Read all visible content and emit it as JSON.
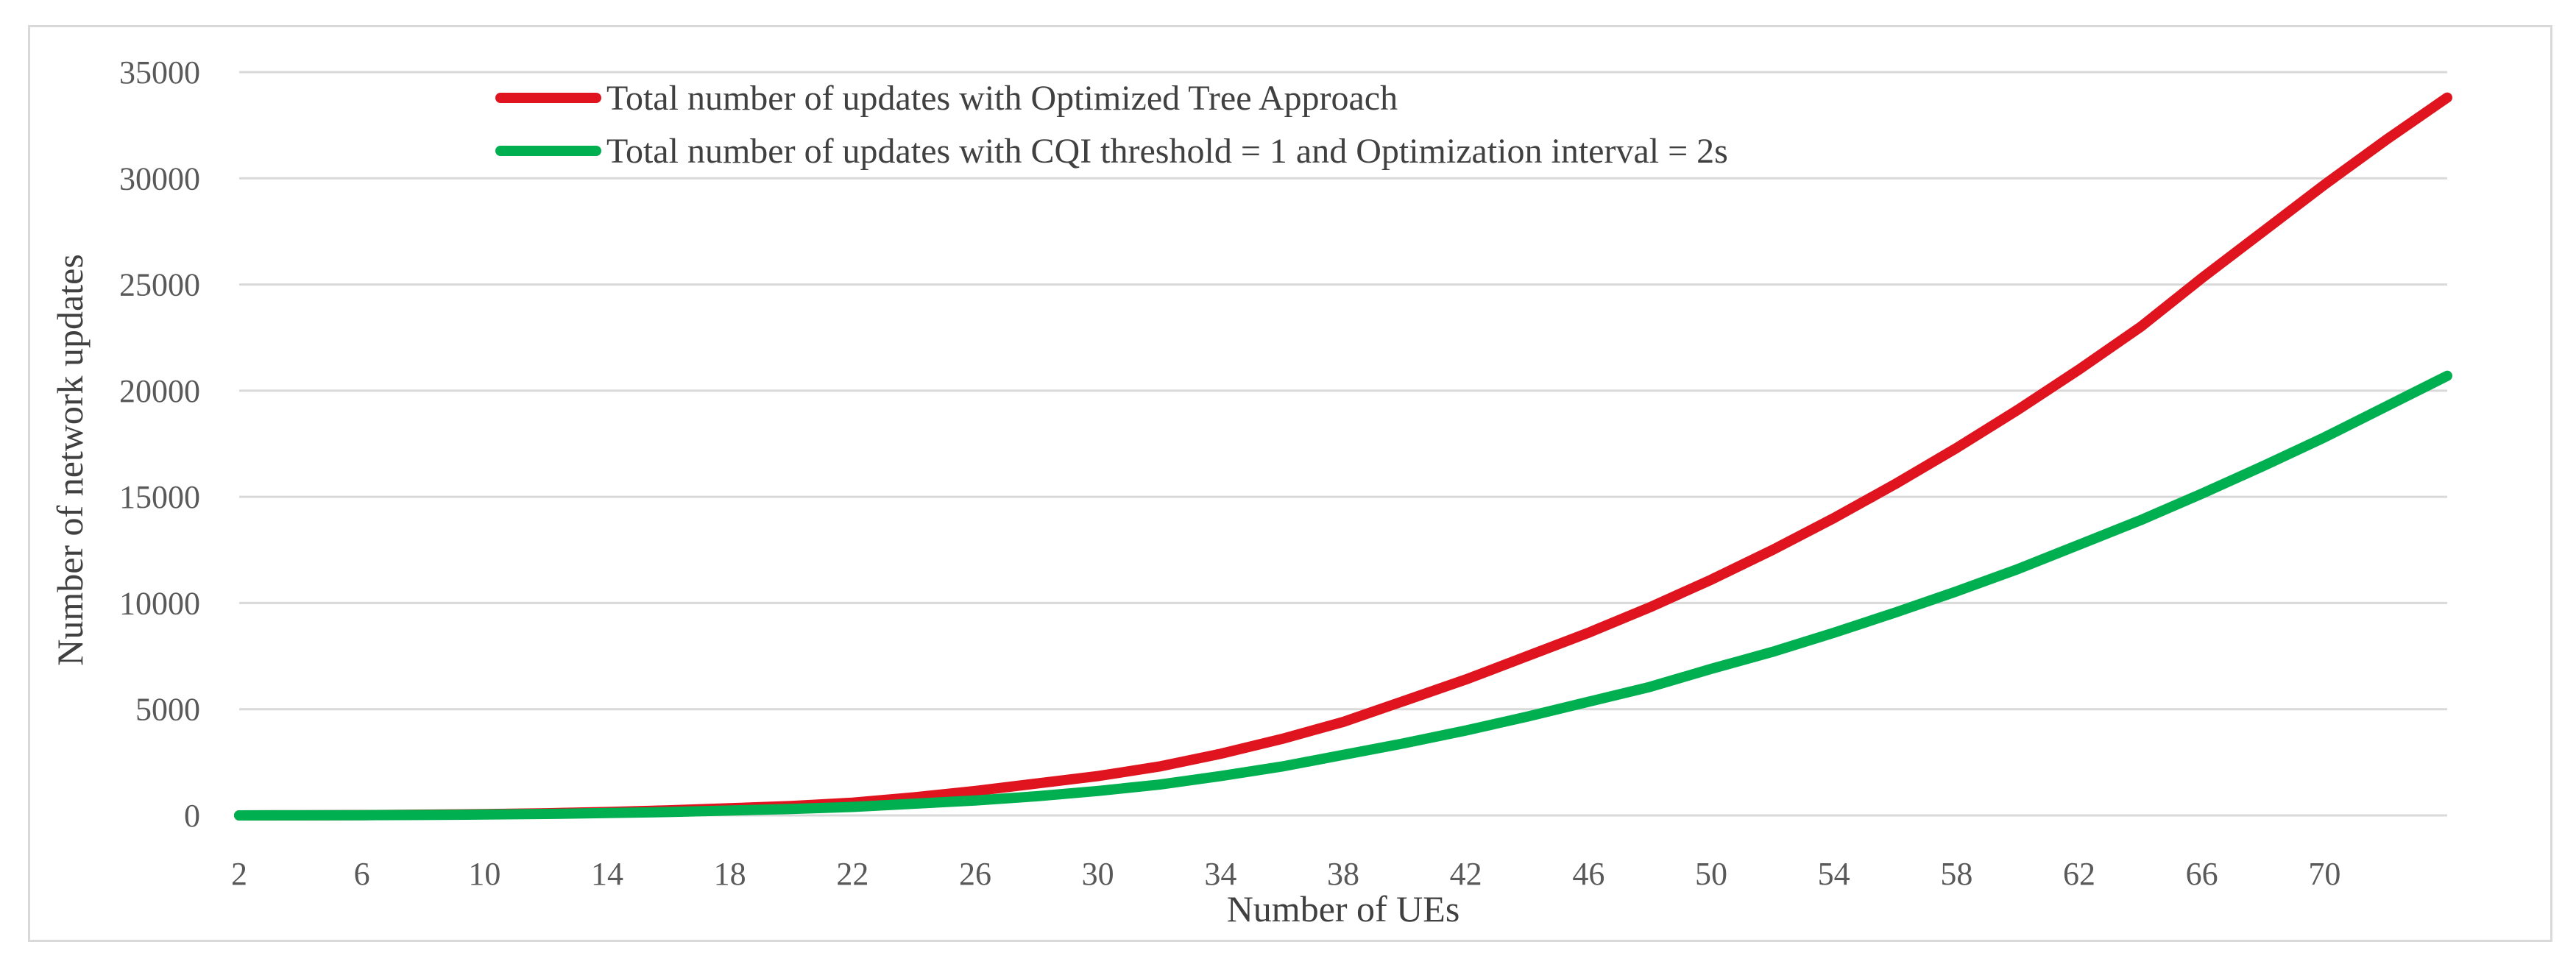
{
  "chart_data": {
    "type": "line",
    "title": "",
    "xlabel": "Number of UEs",
    "ylabel": "Number of network updates",
    "x": [
      2,
      4,
      6,
      8,
      10,
      12,
      14,
      16,
      18,
      20,
      22,
      24,
      26,
      28,
      30,
      32,
      34,
      36,
      38,
      40,
      42,
      44,
      46,
      48,
      50,
      52,
      54,
      56,
      58,
      60,
      62,
      64,
      66,
      68,
      70,
      72,
      74
    ],
    "x_ticks": [
      "2",
      "6",
      "10",
      "14",
      "18",
      "22",
      "26",
      "30",
      "34",
      "38",
      "42",
      "46",
      "50",
      "54",
      "58",
      "62",
      "66",
      "70"
    ],
    "y_ticks": [
      "0",
      "5000",
      "10000",
      "15000",
      "20000",
      "25000",
      "30000",
      "35000"
    ],
    "xlim": [
      2,
      74
    ],
    "ylim": [
      0,
      35000
    ],
    "grid": true,
    "legend_position": "top-center",
    "series": [
      {
        "name": "Total number of updates with Optimized Tree Approach",
        "color": "#e0141e",
        "values": [
          0,
          5,
          15,
          35,
          60,
          100,
          160,
          240,
          340,
          440,
          600,
          850,
          1150,
          1500,
          1850,
          2300,
          2900,
          3600,
          4400,
          5400,
          6400,
          7500,
          8600,
          9800,
          11100,
          12500,
          14000,
          15600,
          17300,
          19100,
          21000,
          23000,
          25300,
          27500,
          29700,
          31800,
          33800
        ]
      },
      {
        "name": "Total number of updates with CQI threshold = 1 and Optimization interval = 2s",
        "color": "#00b050",
        "values": [
          0,
          3,
          10,
          20,
          40,
          70,
          110,
          160,
          230,
          300,
          400,
          550,
          700,
          900,
          1150,
          1450,
          1850,
          2300,
          2850,
          3400,
          4000,
          4650,
          5350,
          6050,
          6900,
          7700,
          8600,
          9550,
          10550,
          11600,
          12750,
          13900,
          15150,
          16450,
          17800,
          19250,
          20700
        ]
      }
    ]
  }
}
